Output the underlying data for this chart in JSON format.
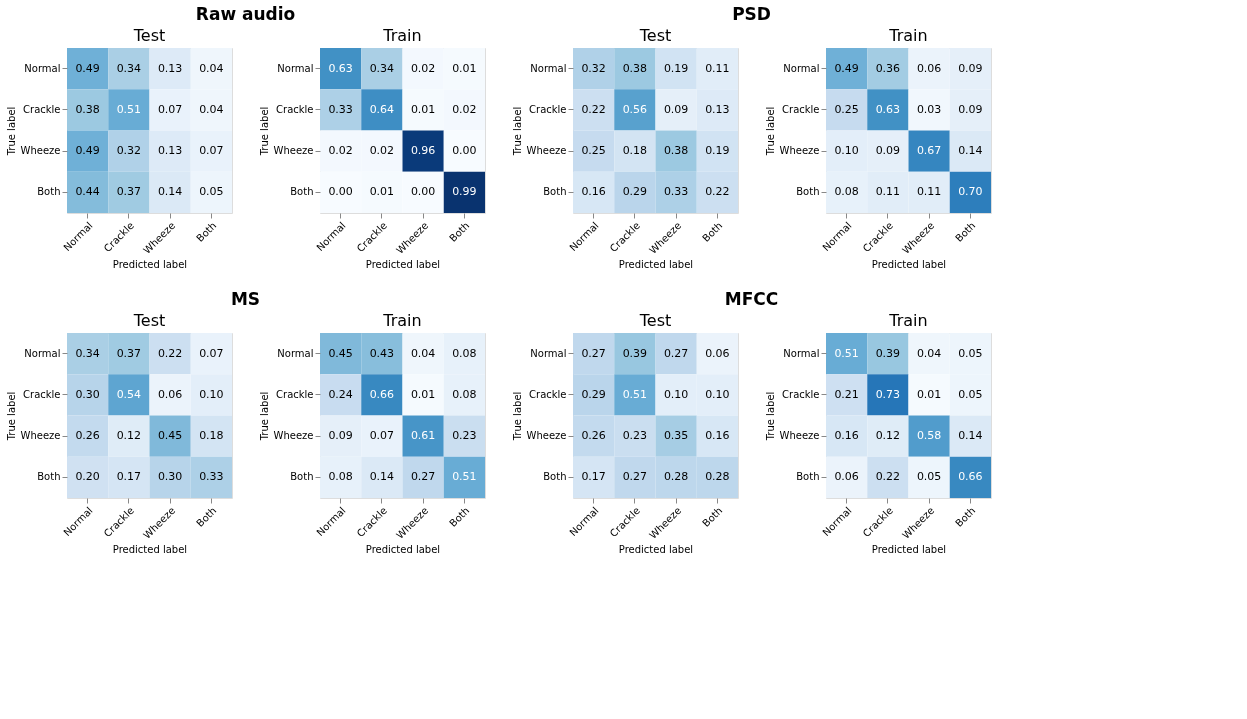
{
  "chart_data": [
    {
      "type": "heatmap",
      "subtitle": "Raw audio",
      "title": "Test",
      "xlabel": "Predicted label",
      "ylabel": "True label",
      "categories": [
        "Normal",
        "Crackle",
        "Wheeze",
        "Both"
      ],
      "y_categories": [
        "Normal",
        "Crackle",
        "Wheeze",
        "Both"
      ],
      "data_labels": true,
      "cells": [
        [
          0.49,
          0.34,
          0.13,
          0.04
        ],
        [
          0.38,
          0.51,
          0.07,
          0.04
        ],
        [
          0.49,
          0.32,
          0.13,
          0.07
        ],
        [
          0.44,
          0.37,
          0.14,
          0.05
        ]
      ],
      "cell_labels": [
        [
          "0.49",
          "0.34",
          "0.13",
          "0.04"
        ],
        [
          "0.38",
          "0.51",
          "0.07",
          "0.04"
        ],
        [
          "0.49",
          "0.32",
          "0.13",
          "0.07"
        ],
        [
          "0.44",
          "0.37",
          "0.14",
          "0.05"
        ]
      ]
    },
    {
      "type": "heatmap",
      "title": "Train",
      "xlabel": "Predicted label",
      "ylabel": "True label",
      "categories": [
        "Normal",
        "Crackle",
        "Wheeze",
        "Both"
      ],
      "y_categories": [
        "Normal",
        "Crackle",
        "Wheeze",
        "Both"
      ],
      "data_labels": true,
      "cells": [
        [
          0.63,
          0.34,
          0.02,
          0.01
        ],
        [
          0.33,
          0.64,
          0.01,
          0.02
        ],
        [
          0.02,
          0.02,
          0.96,
          0.0
        ],
        [
          0.0,
          0.01,
          0.0,
          0.99
        ]
      ],
      "cell_labels": [
        [
          "0.63",
          "0.34",
          "0.02",
          "0.01"
        ],
        [
          "0.33",
          "0.64",
          "0.01",
          "0.02"
        ],
        [
          "0.02",
          "0.02",
          "0.96",
          "0.00"
        ],
        [
          "0.00",
          "0.01",
          "0.00",
          "0.99"
        ]
      ]
    },
    {
      "type": "heatmap",
      "subtitle": "PSD",
      "title": "Test",
      "xlabel": "Predicted label",
      "ylabel": "True label",
      "categories": [
        "Normal",
        "Crackle",
        "Wheeze",
        "Both"
      ],
      "y_categories": [
        "Normal",
        "Crackle",
        "Wheeze",
        "Both"
      ],
      "data_labels": true,
      "cells": [
        [
          0.32,
          0.38,
          0.19,
          0.11
        ],
        [
          0.22,
          0.56,
          0.09,
          0.13
        ],
        [
          0.25,
          0.18,
          0.38,
          0.19
        ],
        [
          0.16,
          0.29,
          0.33,
          0.22
        ]
      ],
      "cell_labels": [
        [
          "0.32",
          "0.38",
          "0.19",
          "0.11"
        ],
        [
          "0.22",
          "0.56",
          "0.09",
          "0.13"
        ],
        [
          "0.25",
          "0.18",
          "0.38",
          "0.19"
        ],
        [
          "0.16",
          "0.29",
          "0.33",
          "0.22"
        ]
      ]
    },
    {
      "type": "heatmap",
      "title": "Train",
      "xlabel": "Predicted label",
      "ylabel": "True label",
      "categories": [
        "Normal",
        "Crackle",
        "Wheeze",
        "Both"
      ],
      "y_categories": [
        "Normal",
        "Crackle",
        "Wheeze",
        "Both"
      ],
      "data_labels": true,
      "cells": [
        [
          0.49,
          0.36,
          0.06,
          0.09
        ],
        [
          0.25,
          0.63,
          0.03,
          0.09
        ],
        [
          0.1,
          0.09,
          0.67,
          0.14
        ],
        [
          0.08,
          0.11,
          0.11,
          0.7
        ]
      ],
      "cell_labels": [
        [
          "0.49",
          "0.36",
          "0.06",
          "0.09"
        ],
        [
          "0.25",
          "0.63",
          "0.03",
          "0.09"
        ],
        [
          "0.10",
          "0.09",
          "0.67",
          "0.14"
        ],
        [
          "0.08",
          "0.11",
          "0.11",
          "0.70"
        ]
      ]
    },
    {
      "type": "heatmap",
      "subtitle": "MS",
      "title": "Test",
      "xlabel": "Predicted label",
      "ylabel": "True label",
      "categories": [
        "Normal",
        "Crackle",
        "Wheeze",
        "Both"
      ],
      "y_categories": [
        "Normal",
        "Crackle",
        "Wheeze",
        "Both"
      ],
      "data_labels": true,
      "cells": [
        [
          0.34,
          0.37,
          0.22,
          0.07
        ],
        [
          0.3,
          0.54,
          0.06,
          0.1
        ],
        [
          0.26,
          0.12,
          0.45,
          0.18
        ],
        [
          0.2,
          0.17,
          0.3,
          0.33
        ]
      ],
      "cell_labels": [
        [
          "0.34",
          "0.37",
          "0.22",
          "0.07"
        ],
        [
          "0.30",
          "0.54",
          "0.06",
          "0.10"
        ],
        [
          "0.26",
          "0.12",
          "0.45",
          "0.18"
        ],
        [
          "0.20",
          "0.17",
          "0.30",
          "0.33"
        ]
      ]
    },
    {
      "type": "heatmap",
      "title": "Train",
      "xlabel": "Predicted label",
      "ylabel": "True label",
      "categories": [
        "Normal",
        "Crackle",
        "Wheeze",
        "Both"
      ],
      "y_categories": [
        "Normal",
        "Crackle",
        "Wheeze",
        "Both"
      ],
      "data_labels": true,
      "cells": [
        [
          0.45,
          0.43,
          0.04,
          0.08
        ],
        [
          0.24,
          0.66,
          0.01,
          0.08
        ],
        [
          0.09,
          0.07,
          0.61,
          0.23
        ],
        [
          0.08,
          0.14,
          0.27,
          0.51
        ]
      ],
      "cell_labels": [
        [
          "0.45",
          "0.43",
          "0.04",
          "0.08"
        ],
        [
          "0.24",
          "0.66",
          "0.01",
          "0.08"
        ],
        [
          "0.09",
          "0.07",
          "0.61",
          "0.23"
        ],
        [
          "0.08",
          "0.14",
          "0.27",
          "0.51"
        ]
      ]
    },
    {
      "type": "heatmap",
      "subtitle": "MFCC",
      "title": "Test",
      "xlabel": "Predicted label",
      "ylabel": "True label",
      "categories": [
        "Normal",
        "Crackle",
        "Wheeze",
        "Both"
      ],
      "y_categories": [
        "Normal",
        "Crackle",
        "Wheeze",
        "Both"
      ],
      "data_labels": true,
      "cells": [
        [
          0.27,
          0.39,
          0.27,
          0.06
        ],
        [
          0.29,
          0.51,
          0.1,
          0.1
        ],
        [
          0.26,
          0.23,
          0.35,
          0.16
        ],
        [
          0.17,
          0.27,
          0.28,
          0.28
        ]
      ],
      "cell_labels": [
        [
          "0.27",
          "0.39",
          "0.27",
          "0.06"
        ],
        [
          "0.29",
          "0.51",
          "0.10",
          "0.10"
        ],
        [
          "0.26",
          "0.23",
          "0.35",
          "0.16"
        ],
        [
          "0.17",
          "0.27",
          "0.28",
          "0.28"
        ]
      ]
    },
    {
      "type": "heatmap",
      "title": "Train",
      "xlabel": "Predicted label",
      "ylabel": "True label",
      "categories": [
        "Normal",
        "Crackle",
        "Wheeze",
        "Both"
      ],
      "y_categories": [
        "Normal",
        "Crackle",
        "Wheeze",
        "Both"
      ],
      "data_labels": true,
      "cells": [
        [
          0.51,
          0.39,
          0.04,
          0.05
        ],
        [
          0.21,
          0.73,
          0.01,
          0.05
        ],
        [
          0.16,
          0.12,
          0.58,
          0.14
        ],
        [
          0.06,
          0.22,
          0.05,
          0.66
        ]
      ],
      "cell_labels": [
        [
          "0.51",
          "0.39",
          "0.04",
          "0.05"
        ],
        [
          "0.21",
          "0.73",
          "0.01",
          "0.05"
        ],
        [
          "0.16",
          "0.12",
          "0.58",
          "0.14"
        ],
        [
          "0.06",
          "0.22",
          "0.05",
          "0.66"
        ]
      ]
    }
  ]
}
